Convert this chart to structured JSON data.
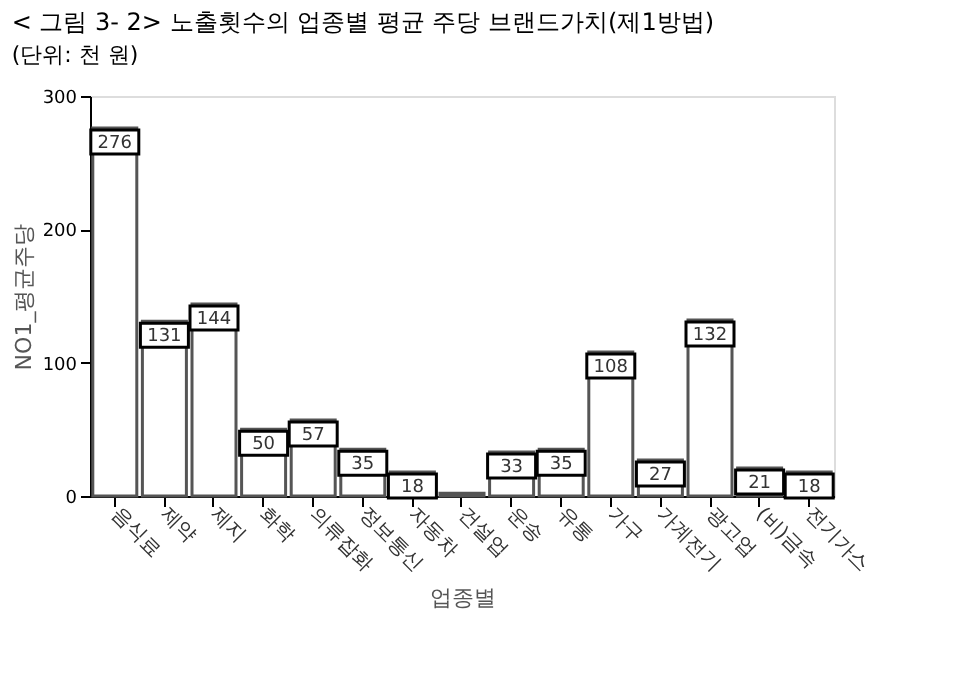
{
  "chart_data": {
    "type": "bar",
    "title": "< 그림 3- 2>  노출횟수의 업종별 평균 주당 브랜드가치(제1방법)",
    "annotations": [
      "(단위: 천 원)"
    ],
    "xlabel": "업종별",
    "ylabel": "NO1_평균주당",
    "categories": [
      "음식료",
      "제약",
      "제지",
      "화학",
      "의류잡화",
      "정보통신",
      "자동차",
      "건설업",
      "운송",
      "유통",
      "가구",
      "가계전기",
      "광고업",
      "(비)금속",
      "전기가스"
    ],
    "values": [
      276,
      131,
      144,
      50,
      57,
      35,
      18,
      2,
      33,
      35,
      108,
      27,
      132,
      21,
      18
    ],
    "value_labels": [
      "276",
      "131",
      "144",
      "50",
      "57",
      "35",
      "18",
      null,
      "33",
      "35",
      "108",
      "27",
      "132",
      "21",
      "18"
    ],
    "color": "#ffffff",
    "ylim": [
      0,
      300
    ],
    "yticks": [
      0,
      100,
      200,
      300
    ],
    "grid": false
  }
}
